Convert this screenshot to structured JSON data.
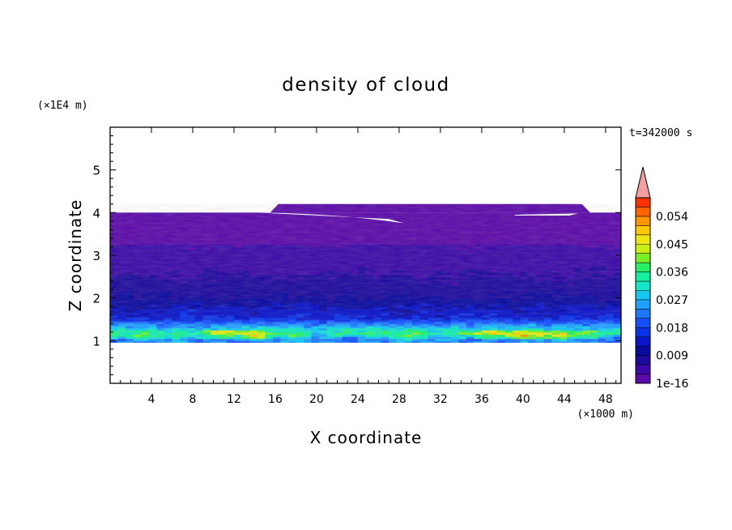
{
  "chart_data": {
    "type": "heatmap",
    "title": "density of cloud",
    "xlabel": "X coordinate",
    "ylabel": "Z coordinate",
    "x_unit_label": "(×1000 m)",
    "y_unit_label": "(×1E4 m)",
    "time_label": "t=342000 s",
    "xlim": [
      0,
      49.5
    ],
    "ylim": [
      0,
      6
    ],
    "x_ticks": [
      4,
      8,
      12,
      16,
      20,
      24,
      28,
      32,
      36,
      40,
      44,
      48
    ],
    "y_ticks": [
      1,
      2,
      3,
      4,
      5
    ],
    "grid": false,
    "colorbar": {
      "tick_labels": [
        "1e-16",
        "0.009",
        "0.018",
        "0.027",
        "0.036",
        "0.045",
        "0.054"
      ],
      "tick_values": [
        0,
        0.009,
        0.018,
        0.027,
        0.036,
        0.045,
        0.054
      ],
      "levels": [
        0,
        0.003,
        0.006,
        0.009,
        0.012,
        0.015,
        0.018,
        0.021,
        0.024,
        0.027,
        0.03,
        0.033,
        0.036,
        0.039,
        0.042,
        0.045,
        0.048,
        0.051,
        0.054,
        0.057
      ],
      "colors": [
        "#5a0aa8",
        "#3c0aa8",
        "#1e0a9e",
        "#0a0aa0",
        "#0a14c8",
        "#0a32e6",
        "#1450ff",
        "#1e78ff",
        "#1ea0ff",
        "#14c8f0",
        "#14e6c8",
        "#14f0a0",
        "#28f064",
        "#78f028",
        "#c8f014",
        "#f0e614",
        "#ffc800",
        "#ff9600",
        "#ff6400",
        "#ff3200"
      ],
      "extend_color": "#f4a0a0"
    },
    "cloud_layer": {
      "base_z": 0.95,
      "top_z": 4.0,
      "upper_patch_top_z": 4.2,
      "upper_patch_x_range": [
        15.5,
        46.5
      ],
      "density_by_z": [
        {
          "z": 1.0,
          "value": 0.024
        },
        {
          "z": 1.15,
          "value": 0.036
        },
        {
          "z": 1.3,
          "value": 0.027
        },
        {
          "z": 1.5,
          "value": 0.015
        },
        {
          "z": 2.0,
          "value": 0.009
        },
        {
          "z": 2.5,
          "value": 0.006
        },
        {
          "z": 3.0,
          "value": 0.004
        },
        {
          "z": 4.0,
          "value": 0.001
        }
      ]
    }
  }
}
